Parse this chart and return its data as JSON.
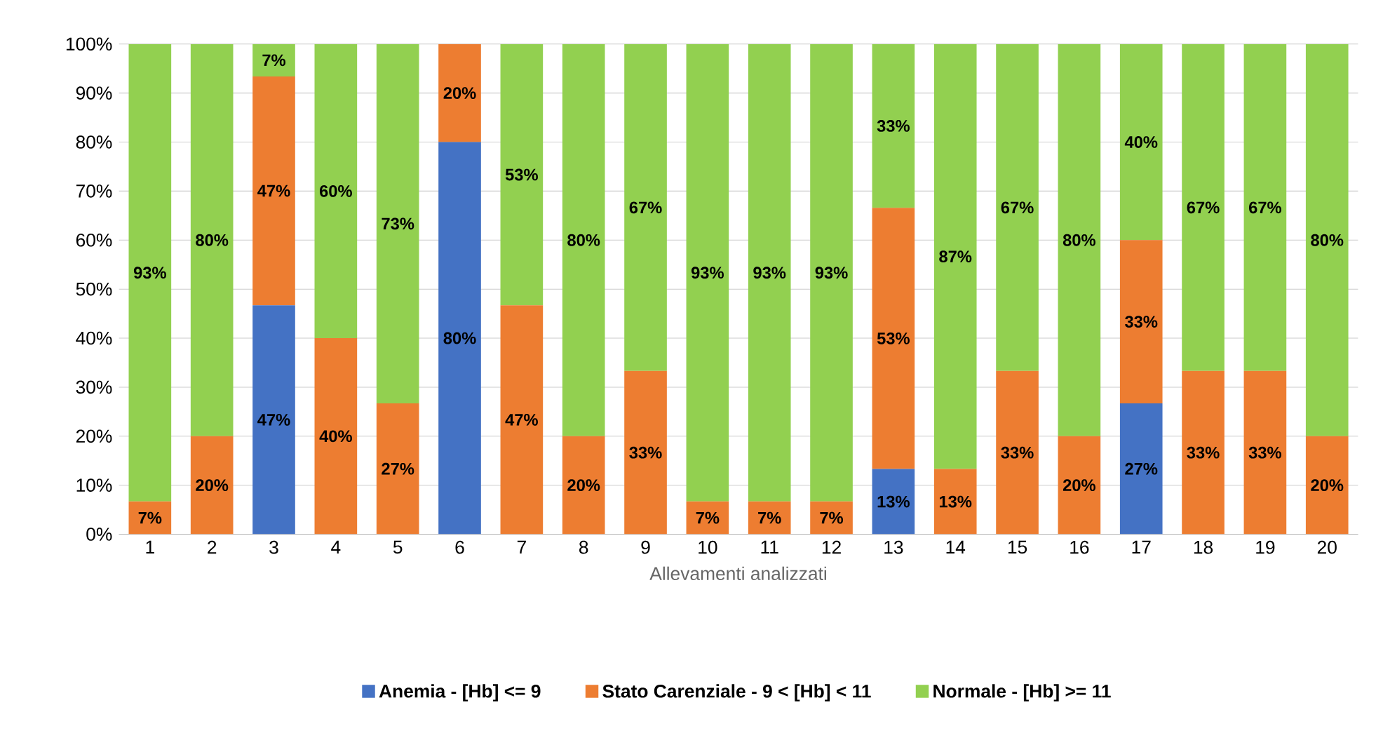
{
  "chart_data": {
    "type": "bar",
    "stacked": true,
    "xlabel": "Allevamenti analizzati",
    "categories": [
      "1",
      "2",
      "3",
      "4",
      "5",
      "6",
      "7",
      "8",
      "9",
      "10",
      "11",
      "12",
      "13",
      "14",
      "15",
      "16",
      "17",
      "18",
      "19",
      "20"
    ],
    "ylim": [
      0,
      100
    ],
    "yticks": [
      {
        "value": 0,
        "label": "0%"
      },
      {
        "value": 10,
        "label": "10%"
      },
      {
        "value": 20,
        "label": "20%"
      },
      {
        "value": 30,
        "label": "30%"
      },
      {
        "value": 40,
        "label": "40%"
      },
      {
        "value": 50,
        "label": "50%"
      },
      {
        "value": 60,
        "label": "60%"
      },
      {
        "value": 70,
        "label": "70%"
      },
      {
        "value": 80,
        "label": "80%"
      },
      {
        "value": 90,
        "label": "90%"
      },
      {
        "value": 100,
        "label": "100%"
      }
    ],
    "grid": "y",
    "legend": "bottom",
    "series": [
      {
        "name": "Anemia - [Hb] <= 9",
        "color": "#4472c4",
        "values": [
          0,
          0,
          46.7,
          0,
          0,
          80,
          0,
          0,
          0,
          0,
          0,
          0,
          13.3,
          0,
          0,
          0,
          26.7,
          0,
          0,
          0
        ],
        "value_labels": [
          null,
          null,
          "47%",
          null,
          null,
          "80%",
          null,
          null,
          null,
          null,
          null,
          null,
          "13%",
          null,
          null,
          null,
          "27%",
          null,
          null,
          null
        ]
      },
      {
        "name": "Stato Carenziale - 9 < [Hb] < 11",
        "color": "#ed7d31",
        "values": [
          6.7,
          20,
          46.7,
          40,
          26.7,
          20,
          46.7,
          20,
          33.3,
          6.7,
          6.7,
          6.7,
          53.3,
          13.3,
          33.3,
          20,
          33.3,
          33.3,
          33.3,
          20
        ],
        "value_labels": [
          "7%",
          "20%",
          "47%",
          "40%",
          "27%",
          "20%",
          "47%",
          "20%",
          "33%",
          "7%",
          "7%",
          "7%",
          "53%",
          "13%",
          "33%",
          "20%",
          "33%",
          "33%",
          "33%",
          "20%"
        ]
      },
      {
        "name": "Normale - [Hb] >= 11",
        "color": "#92d050",
        "values": [
          93.3,
          80,
          6.6,
          60,
          73.3,
          0,
          53.3,
          80,
          66.7,
          93.3,
          93.3,
          93.3,
          33.4,
          86.7,
          66.7,
          80,
          40,
          66.7,
          66.7,
          80
        ],
        "value_labels": [
          "93%",
          "80%",
          "7%",
          "60%",
          "73%",
          null,
          "53%",
          "80%",
          "67%",
          "93%",
          "93%",
          "93%",
          "33%",
          "87%",
          "67%",
          "80%",
          "40%",
          "67%",
          "67%",
          "80%"
        ]
      }
    ]
  }
}
